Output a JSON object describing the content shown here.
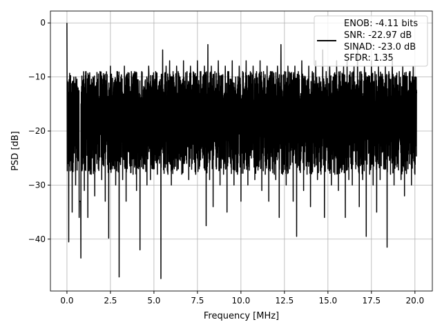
{
  "chart_data": {
    "type": "line",
    "title": "",
    "xlabel": "Frequency [MHz]",
    "ylabel": "PSD [dB]",
    "xlim": [
      -0.95,
      21.0
    ],
    "ylim": [
      -49.6,
      2.2
    ],
    "grid": true,
    "xticks": [
      0.0,
      2.5,
      5.0,
      7.5,
      10.0,
      12.5,
      15.0,
      17.5,
      20.0
    ],
    "xtick_labels": [
      "0.0",
      "2.5",
      "5.0",
      "7.5",
      "10.0",
      "12.5",
      "15.0",
      "17.5",
      "20.0"
    ],
    "yticks": [
      0,
      -10,
      -20,
      -30,
      -40
    ],
    "ytick_labels": [
      "0",
      "−10",
      "−20",
      "−30",
      "−40"
    ],
    "legend": {
      "placement": "upper-right",
      "entries": [
        "ENOB: -4.11 bits",
        "SNR: -22.97 dB",
        "SINAD: -23.0 dB",
        "SFDR: 1.35"
      ]
    },
    "series": [
      {
        "name": "PSD",
        "color": "#000000",
        "x_start": 0.0,
        "x_step": 0.1,
        "values": [
          0,
          -40.5,
          -12,
          -35,
          -10,
          -30,
          -13,
          -36,
          -43.5,
          -11,
          -31,
          -9,
          -36,
          -12,
          -28,
          -10,
          -32,
          -11,
          -27,
          -9,
          -29,
          -12,
          -33,
          -10,
          -39.8,
          -8,
          -27,
          -11,
          -30,
          -9,
          -47,
          -10,
          -29,
          -8,
          -33,
          -11,
          -26,
          -9,
          -28,
          -10,
          -31,
          -12,
          -42,
          -9,
          -27,
          -11,
          -30,
          -8,
          -29,
          -10,
          -25,
          -9,
          -28,
          -11,
          -47.3,
          -5,
          -26,
          -8,
          -28,
          -7,
          -30,
          -9,
          -25,
          -8,
          -27,
          -10,
          -28,
          -7,
          -24,
          -9,
          -29,
          -8,
          -26,
          -10,
          -28,
          -7,
          -27,
          -9,
          -25,
          -8,
          -37.5,
          -4,
          -29,
          -8,
          -34,
          -9,
          -27,
          -7,
          -30,
          -10,
          -28,
          -8,
          -35,
          -9,
          -26,
          -7,
          -30,
          -10,
          -28,
          -8,
          -33,
          -9,
          -27,
          -7,
          -30,
          -10,
          -25,
          -8,
          -29,
          -9,
          -26,
          -7,
          -31,
          -9,
          -28,
          -8,
          -33,
          -9,
          -27,
          -10,
          -29,
          -8,
          -36,
          -4,
          -28,
          -9,
          -30,
          -8,
          -27,
          -10,
          -33,
          -8,
          -39.5,
          -9,
          -26,
          -7,
          -31,
          -10,
          -28,
          -8,
          -34,
          -9,
          -26,
          -7,
          -29,
          -10,
          -28,
          -5,
          -36,
          -9,
          -27,
          -8,
          -30,
          -10,
          -28,
          -7,
          -31,
          -9,
          -27,
          -8,
          -36,
          -7,
          -29,
          -10,
          -30,
          -8,
          -27,
          -4,
          -34,
          -9,
          -29,
          -8,
          -39.5,
          -10,
          -28,
          -7,
          -30,
          -9,
          -35,
          -8,
          -29,
          -10,
          -27,
          -8,
          -41.5,
          -9,
          -28,
          -7,
          -30,
          -10,
          -26,
          -9,
          -29,
          -8,
          -32,
          -10,
          -27,
          -9,
          -30,
          -8,
          -28,
          -13
        ]
      }
    ]
  }
}
